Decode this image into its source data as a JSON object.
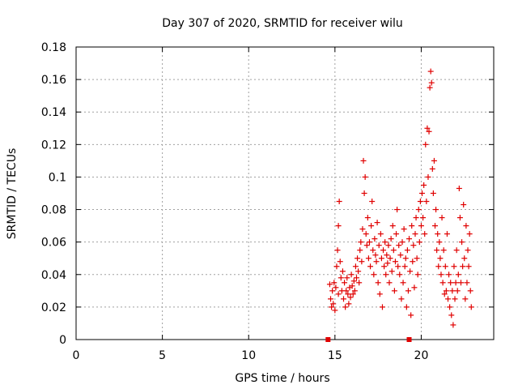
{
  "chart_data": {
    "type": "scatter",
    "title": "Day 307 of 2020, SRMTID for receiver wilu",
    "xlabel": "GPS time / hours",
    "ylabel": "SRMTID / TECUs",
    "xlim": [
      0,
      24.2
    ],
    "ylim": [
      0,
      0.18
    ],
    "xticks": [
      0,
      5,
      10,
      15,
      20
    ],
    "xtick_labels": [
      "0",
      "5",
      "10",
      "15",
      "20"
    ],
    "yticks": [
      0,
      0.02,
      0.04,
      0.06,
      0.08,
      0.1,
      0.12,
      0.14,
      0.16,
      0.18
    ],
    "ytick_labels": [
      "0",
      "0.02",
      "0.04",
      "0.06",
      "0.08",
      "0.1",
      "0.12",
      "0.14",
      "0.16",
      "0.18"
    ],
    "grid": true,
    "marker_color": "#e00000",
    "zero_markers_x": [
      14.6,
      19.3
    ],
    "series": [
      {
        "name": "SRMTID",
        "marker": "plus",
        "points": [
          [
            14.7,
            0.034
          ],
          [
            14.75,
            0.025
          ],
          [
            14.8,
            0.02
          ],
          [
            14.85,
            0.03
          ],
          [
            14.9,
            0.022
          ],
          [
            14.95,
            0.035
          ],
          [
            15.0,
            0.018
          ],
          [
            15.05,
            0.032
          ],
          [
            15.1,
            0.045
          ],
          [
            15.15,
            0.055
          ],
          [
            15.2,
            0.07
          ],
          [
            15.25,
            0.085
          ],
          [
            15.2,
            0.028
          ],
          [
            15.3,
            0.048
          ],
          [
            15.35,
            0.038
          ],
          [
            15.4,
            0.03
          ],
          [
            15.45,
            0.042
          ],
          [
            15.5,
            0.025
          ],
          [
            15.55,
            0.035
          ],
          [
            15.6,
            0.02
          ],
          [
            15.65,
            0.03
          ],
          [
            15.7,
            0.038
          ],
          [
            15.75,
            0.028
          ],
          [
            15.8,
            0.022
          ],
          [
            15.85,
            0.032
          ],
          [
            15.9,
            0.026
          ],
          [
            15.95,
            0.04
          ],
          [
            16.0,
            0.033
          ],
          [
            16.05,
            0.028
          ],
          [
            16.1,
            0.036
          ],
          [
            16.15,
            0.03
          ],
          [
            16.2,
            0.045
          ],
          [
            16.25,
            0.038
          ],
          [
            16.3,
            0.05
          ],
          [
            16.35,
            0.042
          ],
          [
            16.4,
            0.035
          ],
          [
            16.45,
            0.055
          ],
          [
            16.5,
            0.06
          ],
          [
            16.55,
            0.048
          ],
          [
            16.6,
            0.068
          ],
          [
            16.65,
            0.11
          ],
          [
            16.7,
            0.09
          ],
          [
            16.75,
            0.1
          ],
          [
            16.8,
            0.065
          ],
          [
            16.85,
            0.058
          ],
          [
            16.9,
            0.075
          ],
          [
            16.95,
            0.05
          ],
          [
            17.0,
            0.06
          ],
          [
            17.05,
            0.045
          ],
          [
            17.1,
            0.07
          ],
          [
            17.15,
            0.085
          ],
          [
            17.2,
            0.055
          ],
          [
            17.25,
            0.04
          ],
          [
            17.3,
            0.062
          ],
          [
            17.35,
            0.052
          ],
          [
            17.4,
            0.048
          ],
          [
            17.45,
            0.072
          ],
          [
            17.5,
            0.035
          ],
          [
            17.55,
            0.058
          ],
          [
            17.6,
            0.028
          ],
          [
            17.65,
            0.065
          ],
          [
            17.7,
            0.05
          ],
          [
            17.75,
            0.02
          ],
          [
            17.8,
            0.055
          ],
          [
            17.85,
            0.045
          ],
          [
            17.9,
            0.06
          ],
          [
            17.95,
            0.04
          ],
          [
            18.0,
            0.052
          ],
          [
            18.05,
            0.047
          ],
          [
            18.1,
            0.058
          ],
          [
            18.15,
            0.035
          ],
          [
            18.2,
            0.05
          ],
          [
            18.25,
            0.062
          ],
          [
            18.3,
            0.042
          ],
          [
            18.35,
            0.07
          ],
          [
            18.4,
            0.055
          ],
          [
            18.45,
            0.03
          ],
          [
            18.5,
            0.048
          ],
          [
            18.55,
            0.065
          ],
          [
            18.6,
            0.08
          ],
          [
            18.65,
            0.045
          ],
          [
            18.7,
            0.058
          ],
          [
            18.75,
            0.04
          ],
          [
            18.8,
            0.052
          ],
          [
            18.85,
            0.025
          ],
          [
            18.9,
            0.06
          ],
          [
            18.95,
            0.035
          ],
          [
            19.0,
            0.068
          ],
          [
            19.05,
            0.045
          ],
          [
            19.1,
            0.05
          ],
          [
            19.15,
            0.02
          ],
          [
            19.2,
            0.055
          ],
          [
            19.25,
            0.03
          ],
          [
            19.3,
            0.062
          ],
          [
            19.35,
            0.042
          ],
          [
            19.4,
            0.015
          ],
          [
            19.45,
            0.07
          ],
          [
            19.5,
            0.048
          ],
          [
            19.55,
            0.058
          ],
          [
            19.6,
            0.032
          ],
          [
            19.65,
            0.065
          ],
          [
            19.7,
            0.075
          ],
          [
            19.75,
            0.05
          ],
          [
            19.8,
            0.04
          ],
          [
            19.85,
            0.08
          ],
          [
            19.9,
            0.06
          ],
          [
            19.95,
            0.085
          ],
          [
            20.0,
            0.07
          ],
          [
            20.05,
            0.09
          ],
          [
            20.1,
            0.075
          ],
          [
            20.15,
            0.095
          ],
          [
            20.2,
            0.065
          ],
          [
            20.25,
            0.12
          ],
          [
            20.3,
            0.085
          ],
          [
            20.35,
            0.13
          ],
          [
            20.4,
            0.1
          ],
          [
            20.45,
            0.128
          ],
          [
            20.5,
            0.155
          ],
          [
            20.55,
            0.165
          ],
          [
            20.6,
            0.158
          ],
          [
            20.65,
            0.105
          ],
          [
            20.7,
            0.09
          ],
          [
            20.75,
            0.11
          ],
          [
            20.8,
            0.07
          ],
          [
            20.85,
            0.08
          ],
          [
            20.9,
            0.055
          ],
          [
            20.95,
            0.065
          ],
          [
            21.0,
            0.045
          ],
          [
            21.05,
            0.06
          ],
          [
            21.1,
            0.05
          ],
          [
            21.15,
            0.04
          ],
          [
            21.2,
            0.075
          ],
          [
            21.25,
            0.035
          ],
          [
            21.3,
            0.055
          ],
          [
            21.35,
            0.028
          ],
          [
            21.4,
            0.045
          ],
          [
            21.45,
            0.03
          ],
          [
            21.5,
            0.065
          ],
          [
            21.55,
            0.025
          ],
          [
            21.6,
            0.04
          ],
          [
            21.65,
            0.02
          ],
          [
            21.7,
            0.035
          ],
          [
            21.75,
            0.015
          ],
          [
            21.8,
            0.03
          ],
          [
            21.85,
            0.009
          ],
          [
            21.9,
            0.045
          ],
          [
            21.95,
            0.025
          ],
          [
            22.0,
            0.035
          ],
          [
            22.05,
            0.055
          ],
          [
            22.1,
            0.03
          ],
          [
            22.15,
            0.04
          ],
          [
            22.2,
            0.093
          ],
          [
            22.25,
            0.075
          ],
          [
            22.3,
            0.035
          ],
          [
            22.35,
            0.06
          ],
          [
            22.4,
            0.045
          ],
          [
            22.45,
            0.083
          ],
          [
            22.5,
            0.05
          ],
          [
            22.55,
            0.025
          ],
          [
            22.6,
            0.07
          ],
          [
            22.65,
            0.035
          ],
          [
            22.7,
            0.055
          ],
          [
            22.75,
            0.045
          ],
          [
            22.8,
            0.065
          ],
          [
            22.85,
            0.03
          ],
          [
            22.9,
            0.02
          ]
        ]
      }
    ]
  }
}
